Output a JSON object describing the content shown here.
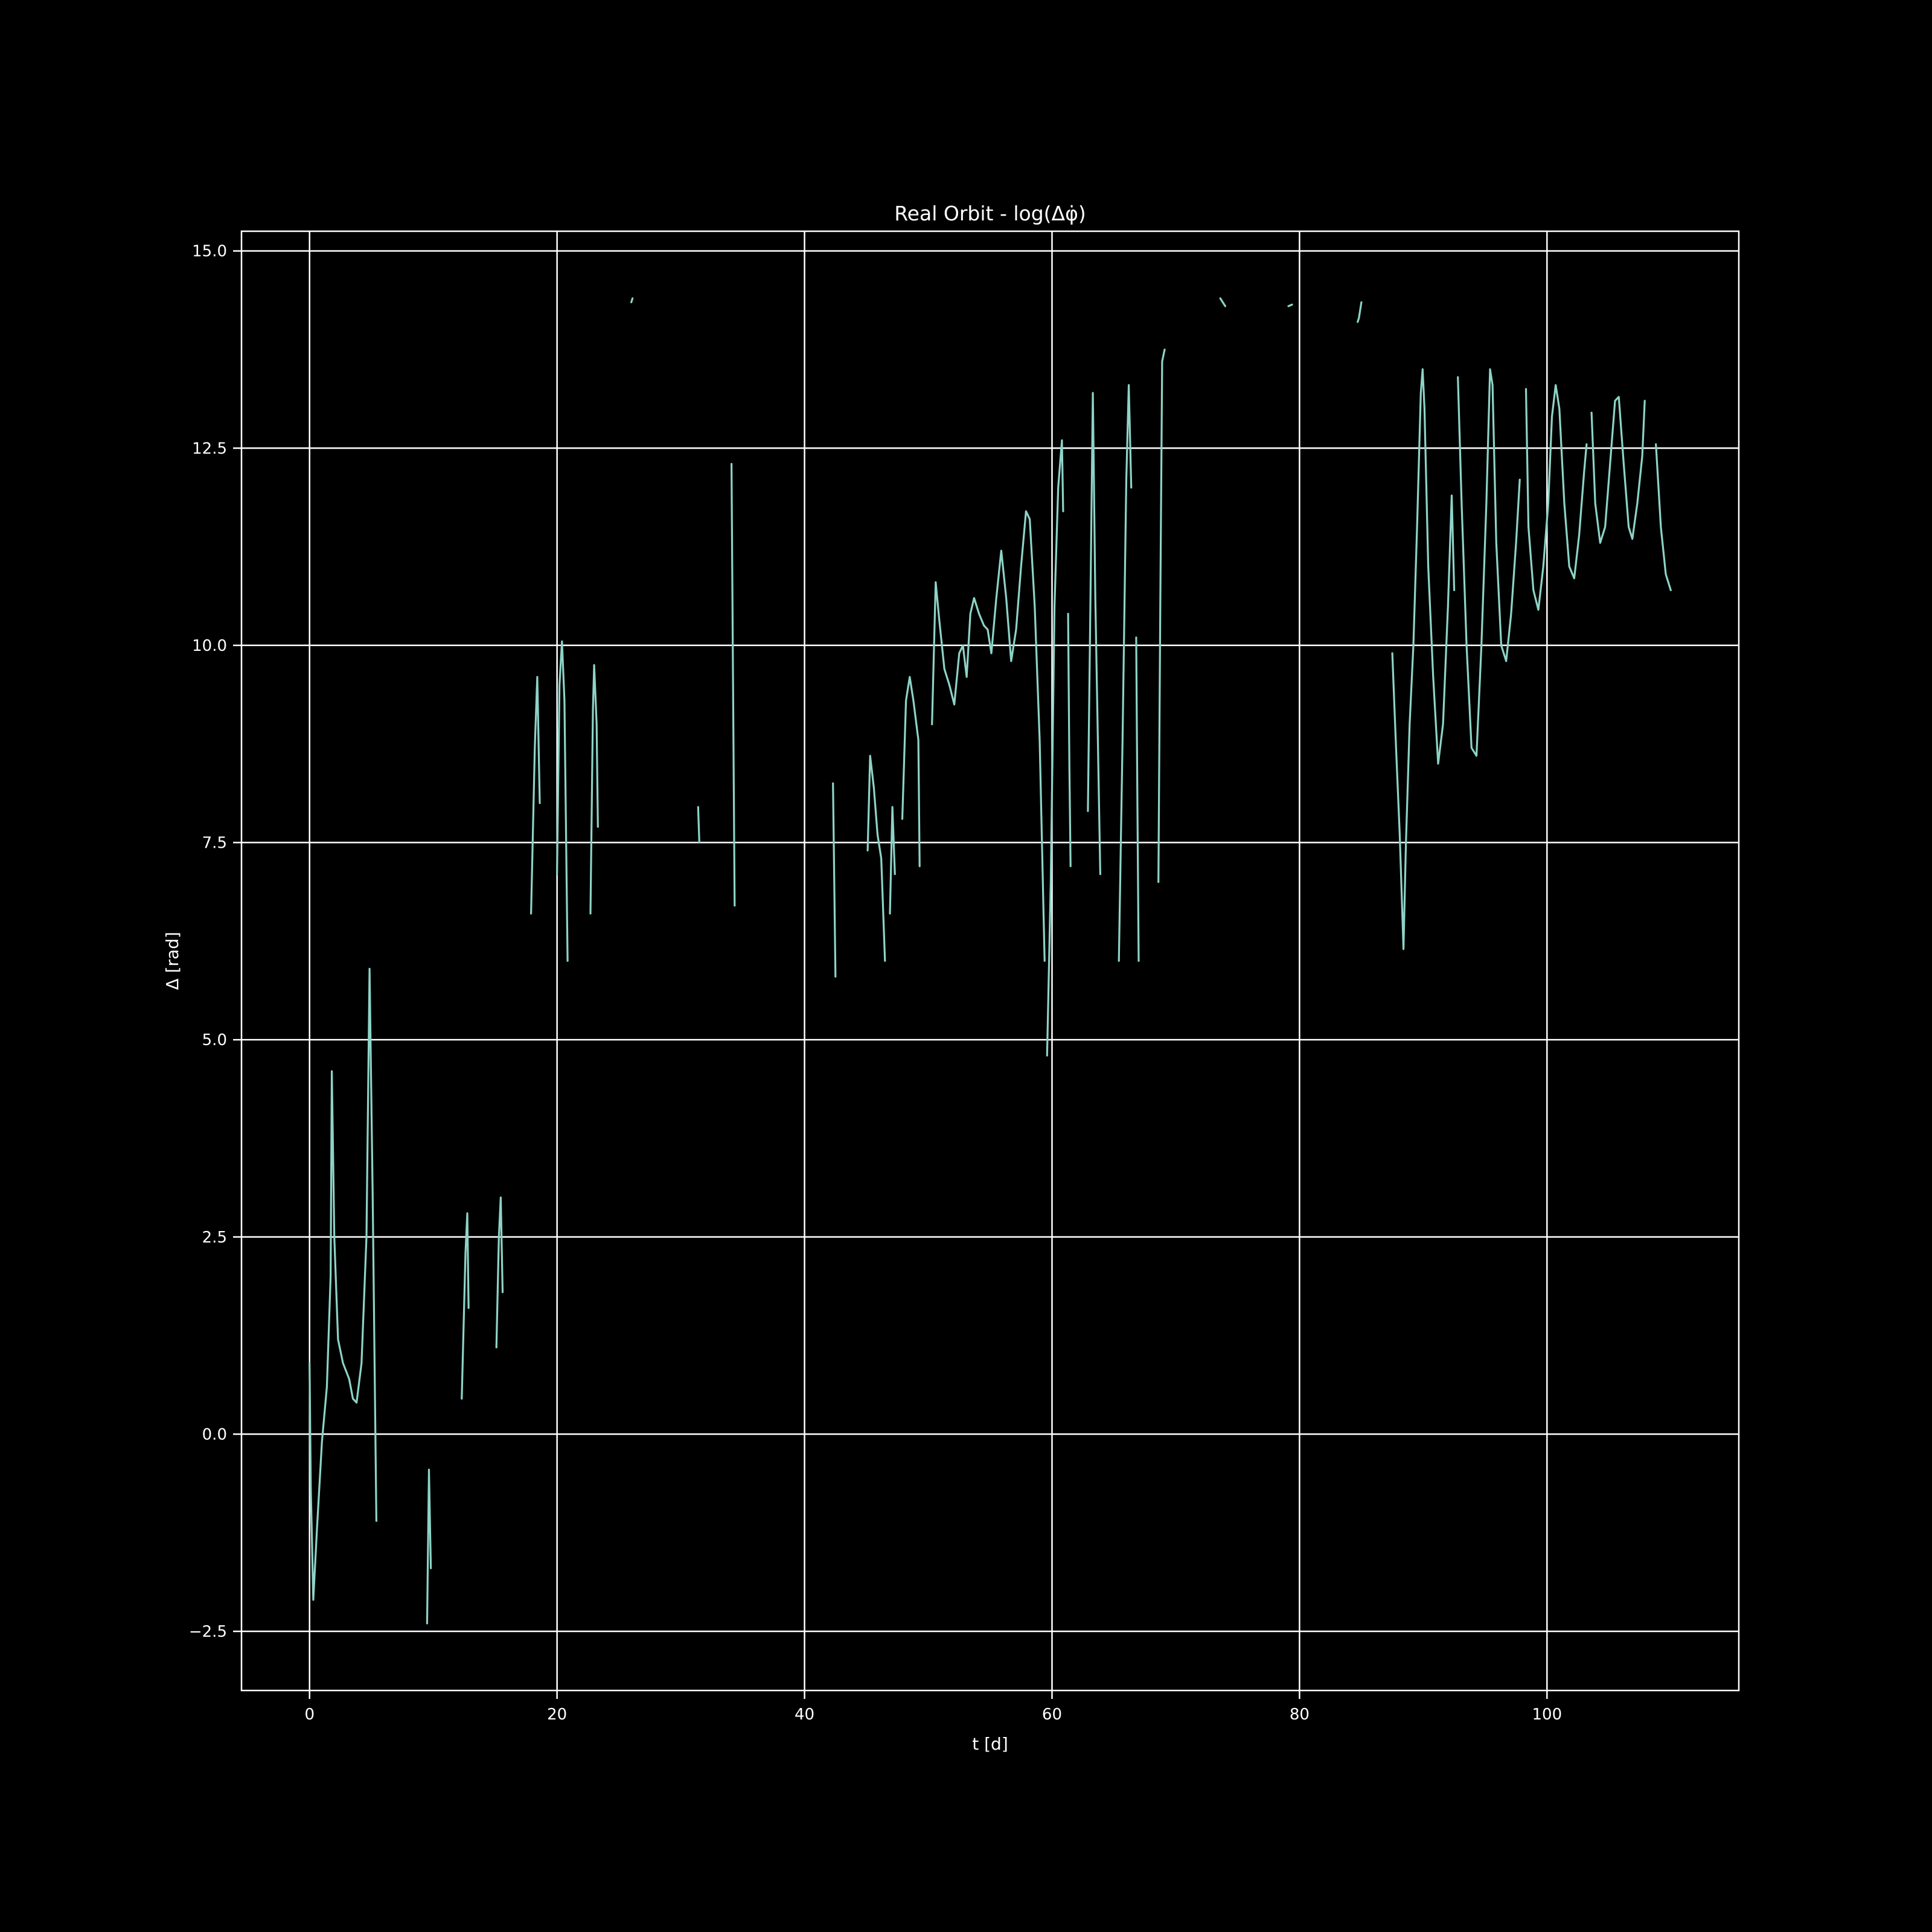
{
  "chart_data": {
    "type": "line",
    "title": "Real Orbit - log(Δφ̇)",
    "xlabel": "t [d]",
    "ylabel": "Δ [rad]",
    "xlim": [
      -5.5,
      115.5
    ],
    "ylim": [
      -3.25,
      15.25
    ],
    "xticks": [
      0,
      20,
      40,
      60,
      80,
      100
    ],
    "yticks": [
      -2.5,
      0.0,
      2.5,
      5.0,
      7.5,
      10.0,
      12.5,
      15.0
    ],
    "xtick_labels": [
      "0",
      "20",
      "40",
      "60",
      "80",
      "100"
    ],
    "ytick_labels": [
      "−2.5",
      "0.0",
      "2.5",
      "5.0",
      "7.5",
      "10.0",
      "12.5",
      "15.0"
    ],
    "grid": true,
    "colors": {
      "background": "#000000",
      "foreground": "#ffffff",
      "line": "#8dd3c7"
    },
    "series": [
      {
        "segments": [
          [
            [
              0.0,
              0.9
            ],
            [
              0.1,
              -0.7
            ],
            [
              0.3,
              -2.1
            ],
            [
              0.6,
              -1.2
            ],
            [
              1.0,
              -0.1
            ],
            [
              1.4,
              0.6
            ],
            [
              1.7,
              2.0
            ],
            [
              1.8,
              4.6
            ],
            [
              2.0,
              2.5
            ],
            [
              2.3,
              1.2
            ],
            [
              2.7,
              0.9
            ],
            [
              3.2,
              0.7
            ],
            [
              3.5,
              0.45
            ],
            [
              3.8,
              0.4
            ],
            [
              4.2,
              0.9
            ],
            [
              4.6,
              2.5
            ],
            [
              4.85,
              5.9
            ],
            [
              5.1,
              3.0
            ],
            [
              5.4,
              -1.1
            ]
          ],
          [
            [
              9.5,
              -2.4
            ],
            [
              9.65,
              -0.45
            ],
            [
              9.8,
              -1.7
            ]
          ],
          [
            [
              12.3,
              0.45
            ],
            [
              12.6,
              2.3
            ],
            [
              12.75,
              2.8
            ],
            [
              12.85,
              1.6
            ]
          ],
          [
            [
              15.1,
              1.1
            ],
            [
              15.3,
              2.5
            ],
            [
              15.45,
              3.0
            ],
            [
              15.6,
              1.8
            ]
          ],
          [
            [
              17.9,
              6.6
            ],
            [
              18.2,
              8.7
            ],
            [
              18.4,
              9.6
            ],
            [
              18.6,
              8.0
            ]
          ],
          [
            [
              20.0,
              7.1
            ],
            [
              20.2,
              9.5
            ],
            [
              20.4,
              10.05
            ],
            [
              20.6,
              9.3
            ],
            [
              20.85,
              6.0
            ]
          ],
          [
            [
              22.7,
              6.6
            ],
            [
              22.9,
              9.2
            ],
            [
              23.0,
              9.75
            ],
            [
              23.2,
              9.0
            ],
            [
              23.3,
              7.7
            ]
          ],
          [
            [
              26.0,
              14.35
            ],
            [
              26.1,
              14.4
            ]
          ],
          [
            [
              31.4,
              7.95
            ],
            [
              31.5,
              7.5
            ]
          ],
          [
            [
              34.1,
              12.3
            ],
            [
              34.2,
              10.0
            ],
            [
              34.35,
              6.7
            ]
          ],
          [
            [
              42.3,
              8.25
            ],
            [
              42.4,
              7.0
            ],
            [
              42.5,
              5.8
            ]
          ],
          [
            [
              45.1,
              7.4
            ],
            [
              45.3,
              8.6
            ],
            [
              45.6,
              8.2
            ],
            [
              45.9,
              7.6
            ],
            [
              46.2,
              7.3
            ],
            [
              46.5,
              6.0
            ]
          ],
          [
            [
              46.9,
              6.6
            ],
            [
              47.1,
              7.95
            ],
            [
              47.3,
              7.1
            ]
          ],
          [
            [
              47.9,
              7.8
            ],
            [
              48.2,
              9.3
            ],
            [
              48.5,
              9.6
            ],
            [
              48.8,
              9.3
            ],
            [
              49.2,
              8.8
            ],
            [
              49.3,
              7.2
            ]
          ],
          [
            [
              50.3,
              9.0
            ],
            [
              50.6,
              10.8
            ],
            [
              50.9,
              10.3
            ],
            [
              51.3,
              9.7
            ],
            [
              51.7,
              9.5
            ],
            [
              52.1,
              9.25
            ],
            [
              52.5,
              9.9
            ],
            [
              52.8,
              10.0
            ],
            [
              53.1,
              9.6
            ],
            [
              53.4,
              10.4
            ],
            [
              53.7,
              10.6
            ],
            [
              54.1,
              10.4
            ],
            [
              54.5,
              10.25
            ],
            [
              54.8,
              10.2
            ],
            [
              55.1,
              9.9
            ],
            [
              55.5,
              10.6
            ],
            [
              55.9,
              11.2
            ],
            [
              56.3,
              10.6
            ],
            [
              56.7,
              9.8
            ],
            [
              57.1,
              10.2
            ],
            [
              57.5,
              11.0
            ],
            [
              57.9,
              11.7
            ],
            [
              58.2,
              11.6
            ],
            [
              58.6,
              10.5
            ],
            [
              59.0,
              8.8
            ],
            [
              59.4,
              6.0
            ]
          ],
          [
            [
              59.6,
              4.8
            ],
            [
              59.9,
              7.0
            ],
            [
              60.2,
              10.5
            ],
            [
              60.5,
              12.0
            ],
            [
              60.8,
              12.6
            ],
            [
              60.9,
              11.7
            ]
          ],
          [
            [
              61.3,
              10.4
            ],
            [
              61.4,
              8.5
            ],
            [
              61.5,
              7.2
            ]
          ],
          [
            [
              62.9,
              7.9
            ],
            [
              63.1,
              10.5
            ],
            [
              63.3,
              13.2
            ],
            [
              63.5,
              10.6
            ],
            [
              63.9,
              7.1
            ]
          ],
          [
            [
              65.4,
              6.0
            ],
            [
              65.7,
              8.8
            ],
            [
              66.0,
              12.1
            ],
            [
              66.2,
              13.3
            ],
            [
              66.4,
              12.0
            ]
          ],
          [
            [
              66.8,
              10.1
            ],
            [
              66.9,
              8.0
            ],
            [
              67.0,
              6.0
            ]
          ],
          [
            [
              68.6,
              7.0
            ],
            [
              68.75,
              10.5
            ],
            [
              68.9,
              13.6
            ],
            [
              69.1,
              13.75
            ]
          ],
          [
            [
              73.6,
              14.4
            ],
            [
              73.8,
              14.35
            ],
            [
              74.0,
              14.3
            ]
          ],
          [
            [
              79.1,
              14.3
            ],
            [
              79.4,
              14.32
            ]
          ],
          [
            [
              84.7,
              14.1
            ],
            [
              84.8,
              14.15
            ],
            [
              85.0,
              14.35
            ]
          ],
          [
            [
              87.5,
              9.9
            ],
            [
              87.8,
              8.7
            ],
            [
              88.1,
              7.6
            ],
            [
              88.4,
              6.15
            ],
            [
              88.6,
              7.5
            ],
            [
              88.9,
              9.0
            ],
            [
              89.2,
              10.0
            ],
            [
              89.5,
              11.5
            ],
            [
              89.8,
              13.2
            ],
            [
              89.95,
              13.5
            ],
            [
              90.1,
              13.0
            ],
            [
              90.4,
              11.0
            ],
            [
              90.8,
              9.6
            ],
            [
              91.2,
              8.5
            ],
            [
              91.6,
              9.0
            ],
            [
              92.0,
              10.5
            ],
            [
              92.3,
              11.9
            ],
            [
              92.5,
              10.7
            ]
          ],
          [
            [
              92.8,
              13.4
            ],
            [
              93.1,
              11.8
            ],
            [
              93.5,
              10.0
            ],
            [
              93.9,
              8.7
            ],
            [
              94.3,
              8.6
            ],
            [
              94.7,
              10.0
            ],
            [
              95.1,
              11.8
            ],
            [
              95.4,
              13.5
            ],
            [
              95.6,
              13.3
            ],
            [
              95.9,
              11.3
            ],
            [
              96.3,
              10.0
            ],
            [
              96.7,
              9.8
            ],
            [
              97.1,
              10.4
            ],
            [
              97.5,
              11.3
            ],
            [
              97.8,
              12.1
            ]
          ],
          [
            [
              98.3,
              13.25
            ],
            [
              98.5,
              11.5
            ],
            [
              98.9,
              10.7
            ],
            [
              99.3,
              10.45
            ],
            [
              99.7,
              11.0
            ],
            [
              100.1,
              11.8
            ],
            [
              100.4,
              12.9
            ],
            [
              100.7,
              13.3
            ],
            [
              101.0,
              13.0
            ],
            [
              101.4,
              11.8
            ],
            [
              101.8,
              11.0
            ],
            [
              102.2,
              10.85
            ],
            [
              102.6,
              11.4
            ],
            [
              103.0,
              12.2
            ],
            [
              103.2,
              12.55
            ]
          ],
          [
            [
              103.6,
              12.95
            ],
            [
              103.9,
              11.8
            ],
            [
              104.3,
              11.3
            ],
            [
              104.7,
              11.5
            ],
            [
              105.1,
              12.3
            ],
            [
              105.5,
              13.1
            ],
            [
              105.8,
              13.15
            ],
            [
              106.2,
              12.3
            ],
            [
              106.6,
              11.5
            ],
            [
              106.9,
              11.35
            ],
            [
              107.3,
              11.8
            ],
            [
              107.7,
              12.4
            ],
            [
              107.9,
              13.1
            ]
          ],
          [
            [
              108.8,
              12.55
            ],
            [
              109.2,
              11.5
            ],
            [
              109.6,
              10.9
            ],
            [
              110.0,
              10.7
            ]
          ]
        ]
      }
    ]
  }
}
